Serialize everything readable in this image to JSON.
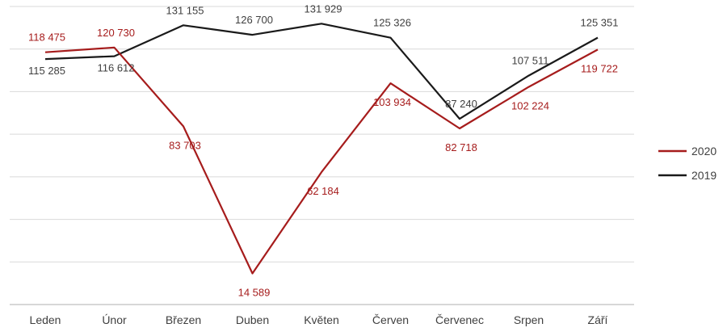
{
  "chart_data": {
    "type": "line",
    "categories": [
      "Leden",
      "Únor",
      "Březen",
      "Duben",
      "Květen",
      "Červen",
      "Červenec",
      "Srpen",
      "Září"
    ],
    "series": [
      {
        "name": "2020",
        "color": "#a61c1c",
        "values": [
          118475,
          120730,
          83703,
          14589,
          62184,
          103934,
          82718,
          102224,
          119722
        ],
        "labels": [
          "118 475",
          "120 730",
          "83 703",
          "14 589",
          "62 184",
          "103 934",
          "82 718",
          "102 224",
          "119 722"
        ]
      },
      {
        "name": "2019",
        "color": "#1a1a1a",
        "values": [
          115285,
          116612,
          131155,
          126700,
          131929,
          125326,
          87240,
          107511,
          125351
        ],
        "labels": [
          "115 285",
          "116 612",
          "131 155",
          "126 700",
          "131 929",
          "125 326",
          "87 240",
          "107 511",
          "125 351"
        ]
      }
    ],
    "ylim": [
      0,
      140000
    ],
    "y_gridlines": [
      20000,
      40000,
      60000,
      80000,
      100000,
      120000,
      140000
    ],
    "grid": true,
    "y_tick_labels_shown": false,
    "legend_position": "right",
    "title": "",
    "xlabel": "",
    "ylabel": ""
  }
}
